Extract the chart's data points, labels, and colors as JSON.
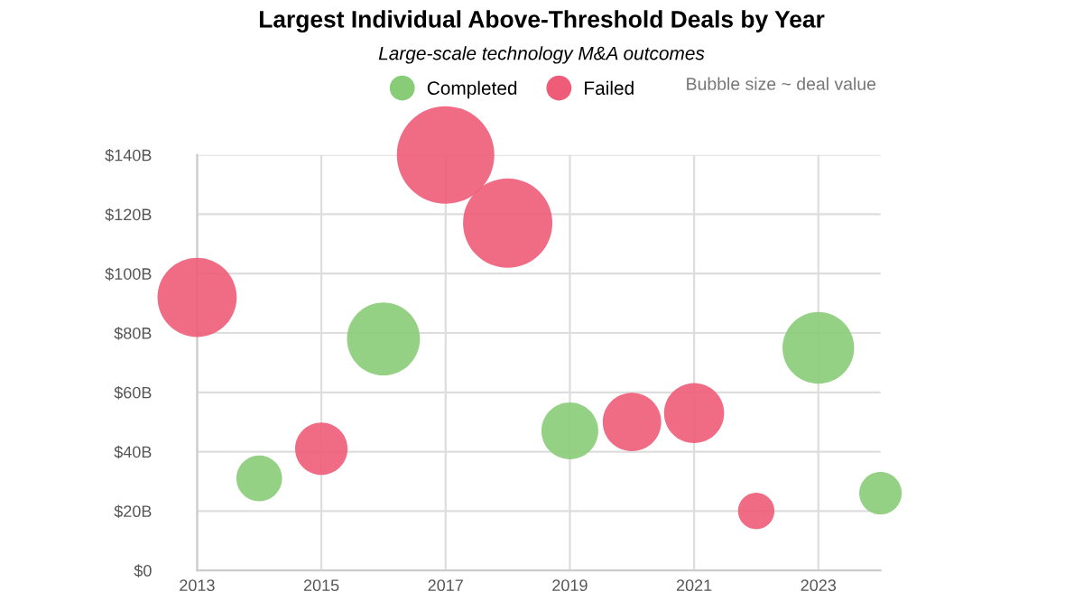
{
  "chart_data": {
    "type": "bubble",
    "title": "Largest Individual Above-Threshold Deals by Year",
    "subtitle": "Large-scale technology M&A outcomes",
    "annotations": [
      "Bubble size ~ deal value"
    ],
    "series": [
      {
        "name": "Completed",
        "color": "#88cc77",
        "x": [
          2014,
          2016,
          2019,
          2023,
          2024
        ],
        "values": [
          31,
          78,
          47,
          75,
          26
        ],
        "sizes": [
          0.22,
          0.56,
          0.34,
          0.54,
          0.19
        ]
      },
      {
        "name": "Failed",
        "color": "#ee5c78",
        "x": [
          2013,
          2015,
          2017,
          2018,
          2020,
          2021,
          2022
        ],
        "values": [
          92,
          41,
          140,
          117,
          50,
          53,
          20
        ],
        "sizes": [
          0.66,
          0.29,
          1.0,
          0.84,
          0.36,
          0.38,
          0.14
        ]
      }
    ],
    "xlim": [
      2013,
      2024
    ],
    "xticks": [
      2013,
      2015,
      2017,
      2019,
      2021,
      2023
    ],
    "ylim": [
      0,
      140
    ],
    "yticks": [
      {
        "value": 0,
        "label": "$0"
      },
      {
        "value": 20,
        "label": "$20B"
      },
      {
        "value": 40,
        "label": "$40B"
      },
      {
        "value": 60,
        "label": "$60B"
      },
      {
        "value": 80,
        "label": "$80B"
      },
      {
        "value": 100,
        "label": "$100B"
      },
      {
        "value": 120,
        "label": "$120B"
      },
      {
        "value": 140,
        "label": "$140B"
      }
    ],
    "grid": true,
    "legend": "top",
    "marker": "circle"
  }
}
